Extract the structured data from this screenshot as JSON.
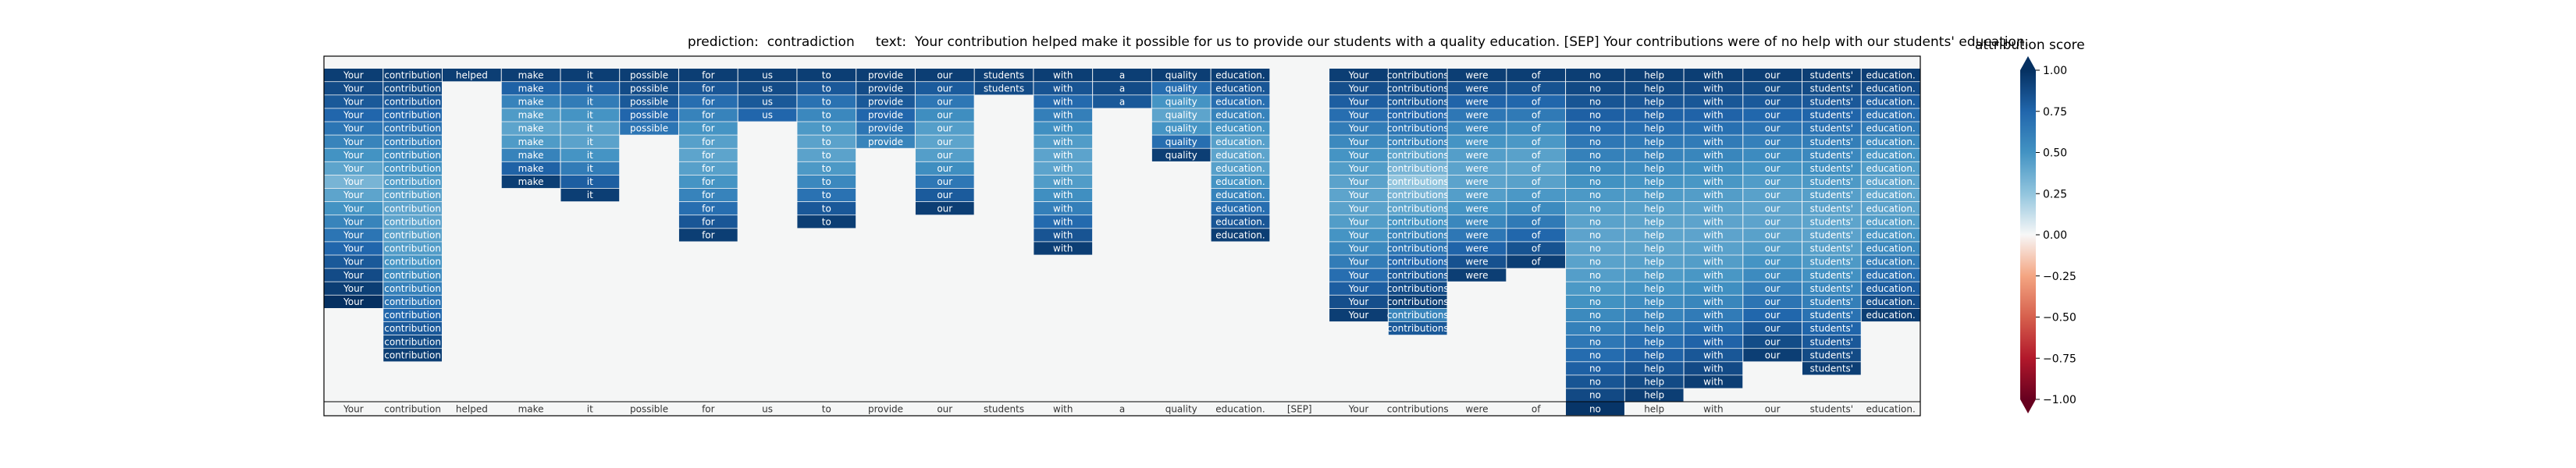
{
  "title": {
    "prediction_label": "prediction:",
    "prediction_value": "contradiction",
    "text_label": "text:",
    "text_value": "Your contribution helped make it possible for us to provide our students with a quality education. [SEP] Your contributions were of no help with our students' education."
  },
  "colorbar": {
    "label": "attribution score",
    "ticks": [
      "1.00",
      "0.75",
      "0.50",
      "0.25",
      "0.00",
      "−0.25",
      "−0.50",
      "−0.75",
      "−1.00"
    ],
    "tick_values": [
      1.0,
      0.75,
      0.5,
      0.25,
      0.0,
      -0.25,
      -0.5,
      -0.75,
      -1.0
    ],
    "range": [
      -1.0,
      1.0
    ],
    "colormap": "RdBu",
    "colors": {
      "positive": "#053061",
      "neutral": "#f7f7f7",
      "negative": "#67001f"
    }
  },
  "chart_data": {
    "type": "heatmap",
    "title": "prediction:  contradiction     text:  Your contribution helped make it possible for us to provide our students with a quality education. [SEP] Your contributions were of no help with our students' education.",
    "xlabel": "",
    "ylabel": "",
    "tokens": [
      "Your",
      "contribution",
      "helped",
      "make",
      "it",
      "possible",
      "for",
      "us",
      "to",
      "provide",
      "our",
      "students",
      "with",
      "a",
      "quality",
      "education.",
      "[SEP]",
      "Your",
      "contributions",
      "were",
      "of",
      "no",
      "help",
      "with",
      "our",
      "students'",
      "education."
    ],
    "row_count": 26,
    "column_extents": [
      {
        "token": "Your",
        "rows": [
          0,
          17
        ]
      },
      {
        "token": "contribution",
        "rows": [
          0,
          21
        ]
      },
      {
        "token": "helped",
        "rows": [
          0,
          0
        ]
      },
      {
        "token": "make",
        "rows": [
          0,
          8
        ]
      },
      {
        "token": "it",
        "rows": [
          0,
          9
        ]
      },
      {
        "token": "possible",
        "rows": [
          0,
          4
        ]
      },
      {
        "token": "for",
        "rows": [
          0,
          12
        ]
      },
      {
        "token": "us",
        "rows": [
          0,
          3
        ]
      },
      {
        "token": "to",
        "rows": [
          0,
          11
        ]
      },
      {
        "token": "provide",
        "rows": [
          0,
          5
        ]
      },
      {
        "token": "our",
        "rows": [
          0,
          10
        ]
      },
      {
        "token": "students",
        "rows": [
          0,
          1
        ]
      },
      {
        "token": "with",
        "rows": [
          0,
          13
        ]
      },
      {
        "token": "a",
        "rows": [
          0,
          2
        ]
      },
      {
        "token": "quality",
        "rows": [
          0,
          6
        ]
      },
      {
        "token": "education.",
        "rows": [
          0,
          12
        ]
      },
      {
        "token": "[SEP]",
        "rows": []
      },
      {
        "token": "Your",
        "rows": [
          0,
          18
        ]
      },
      {
        "token": "contributions",
        "rows": [
          0,
          19
        ]
      },
      {
        "token": "were",
        "rows": [
          0,
          15
        ]
      },
      {
        "token": "of",
        "rows": [
          0,
          14
        ]
      },
      {
        "token": "no",
        "rows": [
          0,
          25
        ]
      },
      {
        "token": "help",
        "rows": [
          0,
          24
        ]
      },
      {
        "token": "with",
        "rows": [
          0,
          23
        ]
      },
      {
        "token": "our",
        "rows": [
          0,
          21
        ]
      },
      {
        "token": "students'",
        "rows": [
          0,
          22
        ]
      },
      {
        "token": "education.",
        "rows": [
          0,
          18
        ]
      }
    ],
    "column_intensity_profile": {
      "Your": [
        0.95,
        0.9,
        0.85,
        0.8,
        0.75,
        0.7,
        0.65,
        0.6,
        0.55,
        0.6,
        0.65,
        0.7,
        0.75,
        0.8,
        0.85,
        0.9,
        0.95,
        1.0
      ],
      "contributions_right": [
        0.95,
        0.9,
        0.85,
        0.8,
        0.75,
        0.7,
        0.6,
        0.55,
        0.5,
        0.55,
        0.6,
        0.65,
        0.7,
        0.75,
        0.8,
        0.85,
        0.9,
        0.95,
        0.7,
        0.85
      ]
    },
    "value_range": [
      -1.0,
      1.0
    ],
    "grid": false
  }
}
